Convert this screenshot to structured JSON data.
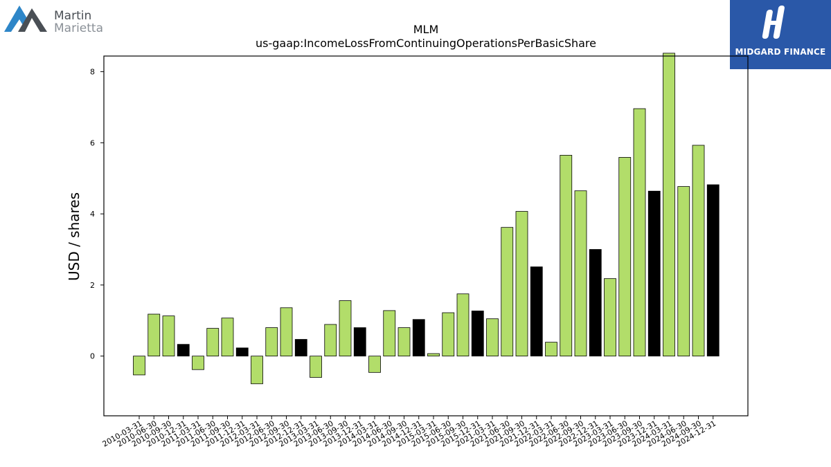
{
  "logos": {
    "left": {
      "line1": "Martin",
      "line2": "Marietta"
    },
    "right": {
      "brand": "MIDGARD FINANCE"
    }
  },
  "colors": {
    "positive": "#b2dd6a",
    "highlight": "#000000",
    "edge": "#000000"
  },
  "chart_data": {
    "type": "bar",
    "title": "MLM",
    "subtitle": "us-gaap:IncomeLossFromContinuingOperationsPerBasicShare",
    "xlabel": "",
    "ylabel": "USD / shares",
    "ylim": [
      -1.68,
      8.44
    ],
    "yticks": [
      0,
      2,
      4,
      6,
      8
    ],
    "grid": false,
    "categories": [
      "2010-03-31",
      "2010-06-30",
      "2010-09-30",
      "2010-12-31",
      "2011-03-31",
      "2011-06-30",
      "2011-09-30",
      "2011-12-31",
      "2012-03-31",
      "2012-06-30",
      "2012-09-30",
      "2012-12-31",
      "2013-03-31",
      "2013-06-30",
      "2013-09-30",
      "2013-12-31",
      "2014-03-31",
      "2014-06-30",
      "2014-09-30",
      "2014-12-31",
      "2015-03-31",
      "2015-06-30",
      "2015-09-30",
      "2015-12-31",
      "2021-03-31",
      "2021-06-30",
      "2021-09-30",
      "2021-12-31",
      "2022-03-31",
      "2022-06-30",
      "2022-09-30",
      "2022-12-31",
      "2023-03-31",
      "2023-06-30",
      "2023-09-30",
      "2023-12-31",
      "2024-03-31",
      "2024-06-30",
      "2024-09-30",
      "2024-12-31"
    ],
    "values": [
      -0.53,
      1.18,
      1.13,
      0.33,
      -0.38,
      0.78,
      1.07,
      0.23,
      -0.78,
      0.8,
      1.36,
      0.47,
      -0.6,
      0.89,
      1.56,
      0.8,
      -0.46,
      1.28,
      0.8,
      1.03,
      0.07,
      1.22,
      1.75,
      1.27,
      1.05,
      3.62,
      4.07,
      2.51,
      0.39,
      5.65,
      4.65,
      3.0,
      2.18,
      5.59,
      6.96,
      4.64,
      8.52,
      4.77,
      5.93,
      4.82
    ],
    "highlight": [
      false,
      false,
      false,
      true,
      false,
      false,
      false,
      true,
      false,
      false,
      false,
      true,
      false,
      false,
      false,
      true,
      false,
      false,
      false,
      true,
      false,
      false,
      false,
      true,
      false,
      false,
      false,
      true,
      false,
      false,
      false,
      true,
      false,
      false,
      false,
      true,
      false,
      false,
      false,
      true
    ]
  }
}
